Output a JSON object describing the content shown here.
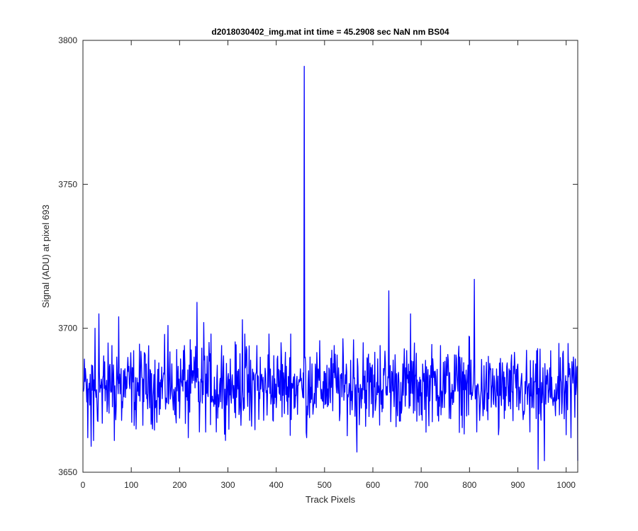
{
  "chart_data": {
    "type": "line",
    "title": "d2018030402_img.mat int time = 45.2908 sec  NaN nm BS04",
    "xlabel": "Track Pixels",
    "ylabel": "Signal (ADU) at pixel 693",
    "xlim": [
      0,
      1024
    ],
    "ylim": [
      3650,
      3800
    ],
    "xticks": [
      0,
      100,
      200,
      300,
      400,
      500,
      600,
      700,
      800,
      900,
      1000
    ],
    "yticks": [
      3650,
      3700,
      3750,
      3800
    ],
    "grid": false,
    "series_color": "#0000ff",
    "series": [
      {
        "x_start": 1,
        "x_step": 1,
        "baseline": 3680,
        "noise_amplitude": 10,
        "values": [
          [
            1,
            3678
          ],
          [
            5,
            3686
          ],
          [
            10,
            3662
          ],
          [
            15,
            3684
          ],
          [
            17,
            3659
          ],
          [
            20,
            3687
          ],
          [
            22,
            3661
          ],
          [
            25,
            3700
          ],
          [
            30,
            3668
          ],
          [
            33,
            3705
          ],
          [
            40,
            3667
          ],
          [
            50,
            3671
          ],
          [
            60,
            3694
          ],
          [
            65,
            3661
          ],
          [
            70,
            3690
          ],
          [
            74,
            3704
          ],
          [
            80,
            3668
          ],
          [
            100,
            3684
          ],
          [
            110,
            3665
          ],
          [
            120,
            3692
          ],
          [
            140,
            3685
          ],
          [
            160,
            3672
          ],
          [
            176,
            3701
          ],
          [
            190,
            3670
          ],
          [
            210,
            3694
          ],
          [
            218,
            3662
          ],
          [
            230,
            3690
          ],
          [
            236,
            3709
          ],
          [
            241,
            3664
          ],
          [
            250,
            3702
          ],
          [
            265,
            3698
          ],
          [
            276,
            3664
          ],
          [
            287,
            3694
          ],
          [
            300,
            3683
          ],
          [
            318,
            3676
          ],
          [
            330,
            3703
          ],
          [
            335,
            3698
          ],
          [
            345,
            3668
          ],
          [
            349,
            3666
          ],
          [
            360,
            3694
          ],
          [
            374,
            3668
          ],
          [
            385,
            3698
          ],
          [
            398,
            3676
          ],
          [
            410,
            3695
          ],
          [
            420,
            3677
          ],
          [
            430,
            3698
          ],
          [
            445,
            3680
          ],
          [
            455,
            3676
          ],
          [
            458,
            3791
          ],
          [
            460,
            3690
          ],
          [
            463,
            3662
          ],
          [
            470,
            3690
          ],
          [
            485,
            3686
          ],
          [
            500,
            3685
          ],
          [
            520,
            3694
          ],
          [
            540,
            3675
          ],
          [
            553,
            3670
          ],
          [
            560,
            3696
          ],
          [
            567,
            3657
          ],
          [
            580,
            3695
          ],
          [
            600,
            3669
          ],
          [
            615,
            3694
          ],
          [
            633,
            3713
          ],
          [
            640,
            3684
          ],
          [
            660,
            3672
          ],
          [
            678,
            3705
          ],
          [
            700,
            3670
          ],
          [
            720,
            3687
          ],
          [
            740,
            3694
          ],
          [
            760,
            3675
          ],
          [
            780,
            3690
          ],
          [
            800,
            3697
          ],
          [
            810,
            3717
          ],
          [
            815,
            3664
          ],
          [
            830,
            3687
          ],
          [
            848,
            3686
          ],
          [
            860,
            3663
          ],
          [
            878,
            3688
          ],
          [
            895,
            3682
          ],
          [
            910,
            3672
          ],
          [
            925,
            3664
          ],
          [
            942,
            3651
          ],
          [
            955,
            3654
          ],
          [
            970,
            3683
          ],
          [
            990,
            3681
          ],
          [
            1000,
            3663
          ],
          [
            1010,
            3662
          ],
          [
            1015,
            3690
          ],
          [
            1020,
            3677
          ],
          [
            1024,
            3654
          ]
        ]
      }
    ]
  }
}
